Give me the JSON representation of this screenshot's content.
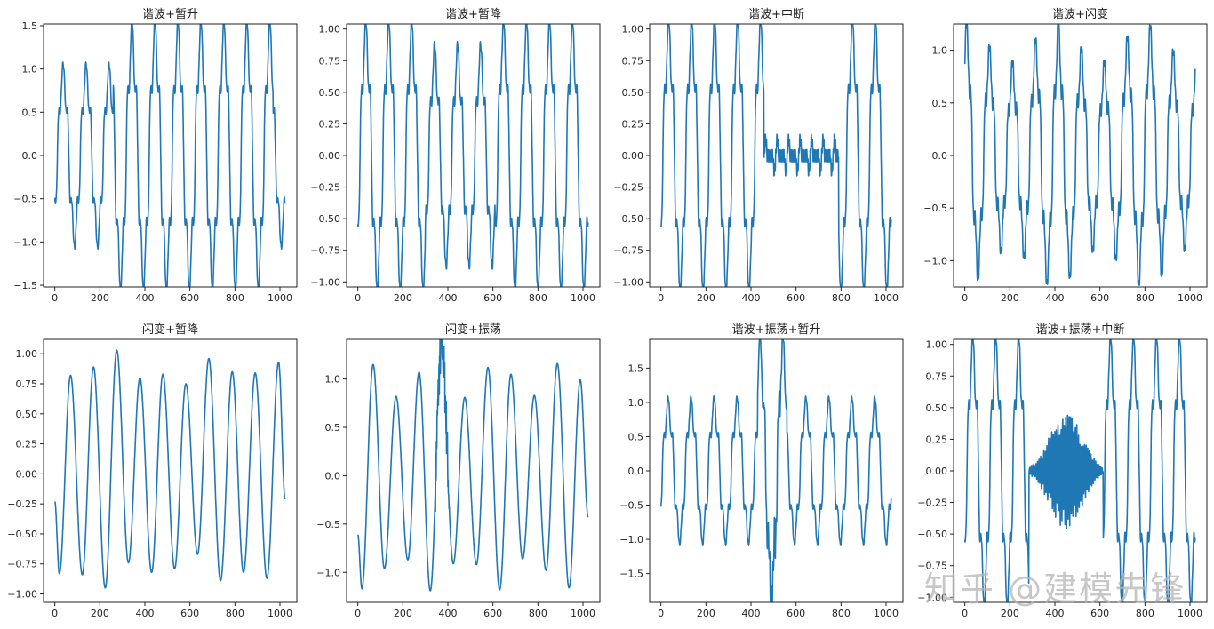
{
  "figure": {
    "watermark": "知乎 @建模先锋",
    "line_color": "#1f77b4"
  },
  "chart_data": [
    {
      "type": "line",
      "title": "谐波+暂升",
      "xlabel": "",
      "ylabel": "",
      "xlim": [
        -50,
        1075
      ],
      "ylim": [
        -1.52,
        1.52
      ],
      "xticks": [
        0,
        200,
        400,
        600,
        800,
        1000
      ],
      "yticks": [
        -1.5,
        -1.0,
        -0.5,
        0.0,
        0.5,
        1.0,
        1.5
      ],
      "ytick_labels": [
        "−1.5",
        "−1.0",
        "−0.5",
        "0.0",
        "0.5",
        "1.0",
        "1.5"
      ],
      "signal": {
        "kind": "harmonic",
        "period": 102,
        "phase": -0.7,
        "amp": 0.94,
        "segments": [
          {
            "from": 0,
            "to": 260,
            "amp": 0.94
          },
          {
            "from": 260,
            "to": 970,
            "amp": 1.38
          },
          {
            "from": 970,
            "to": 1023,
            "amp": 0.94
          }
        ]
      },
      "x_range": [
        0,
        1023
      ]
    },
    {
      "type": "line",
      "title": "谐波+暂降",
      "xlabel": "",
      "ylabel": "",
      "xlim": [
        -50,
        1075
      ],
      "ylim": [
        -1.04,
        1.04
      ],
      "xticks": [
        0,
        200,
        400,
        600,
        800,
        1000
      ],
      "yticks": [
        -1.0,
        -0.75,
        -0.5,
        -0.25,
        0.0,
        0.25,
        0.5,
        0.75,
        1.0
      ],
      "ytick_labels": [
        "−1.00",
        "−0.75",
        "−0.50",
        "−0.25",
        "0.00",
        "0.25",
        "0.50",
        "0.75",
        "1.00"
      ],
      "signal": {
        "kind": "harmonic",
        "period": 102,
        "phase": -0.6,
        "amp": 0.95,
        "segments": [
          {
            "from": 0,
            "to": 300,
            "amp": 0.95
          },
          {
            "from": 300,
            "to": 610,
            "amp": 0.78
          },
          {
            "from": 610,
            "to": 1023,
            "amp": 0.95
          }
        ]
      },
      "x_range": [
        0,
        1023
      ]
    },
    {
      "type": "line",
      "title": "谐波+中断",
      "xlabel": "",
      "ylabel": "",
      "xlim": [
        -50,
        1075
      ],
      "ylim": [
        -1.04,
        1.04
      ],
      "xticks": [
        0,
        200,
        400,
        600,
        800,
        1000
      ],
      "yticks": [
        -1.0,
        -0.75,
        -0.5,
        -0.25,
        0.0,
        0.25,
        0.5,
        0.75,
        1.0
      ],
      "ytick_labels": [
        "−1.00",
        "−0.75",
        "−0.50",
        "−0.25",
        "0.00",
        "0.25",
        "0.50",
        "0.75",
        "1.00"
      ],
      "signal": {
        "kind": "harmonic",
        "period": 102,
        "phase": -0.55,
        "amp": 0.96,
        "segments": [
          {
            "from": 0,
            "to": 458,
            "amp": 0.96
          },
          {
            "from": 458,
            "to": 790,
            "amp": 0.0,
            "residual": 0.25
          },
          {
            "from": 790,
            "to": 1023,
            "amp": 0.96
          }
        ]
      },
      "x_range": [
        0,
        1023
      ]
    },
    {
      "type": "line",
      "title": "谐波+闪变",
      "xlabel": "",
      "ylabel": "",
      "xlim": [
        -50,
        1075
      ],
      "ylim": [
        -1.25,
        1.25
      ],
      "xticks": [
        0,
        200,
        400,
        600,
        800,
        1000
      ],
      "yticks": [
        -1.0,
        -0.5,
        0.0,
        0.5,
        1.0
      ],
      "ytick_labels": [
        "−1.0",
        "−0.5",
        "0.0",
        "0.5",
        "1.0"
      ],
      "signal": {
        "kind": "harmonic-flicker",
        "period": 102,
        "phase": 1.1,
        "amp": 0.95,
        "flicker_depth": 0.17,
        "flicker_period": 400
      },
      "x_range": [
        0,
        1023
      ]
    },
    {
      "type": "line",
      "title": "闪变+暂降",
      "xlabel": "",
      "ylabel": "",
      "xlim": [
        -50,
        1075
      ],
      "ylim": [
        -1.07,
        1.12
      ],
      "xticks": [
        0,
        200,
        400,
        600,
        800,
        1000
      ],
      "yticks": [
        -1.0,
        -0.75,
        -0.5,
        -0.25,
        0.0,
        0.25,
        0.5,
        0.75,
        1.0
      ],
      "ytick_labels": [
        "−1.00",
        "−0.75",
        "−0.50",
        "−0.25",
        "0.00",
        "0.25",
        "0.50",
        "0.75",
        "1.00"
      ],
      "peaks": [
        [
          0,
          -0.23
        ],
        [
          20,
          -0.83
        ],
        [
          70,
          0.82
        ],
        [
          122,
          -0.84
        ],
        [
          172,
          0.89
        ],
        [
          224,
          -0.95
        ],
        [
          275,
          1.03
        ],
        [
          327,
          -0.74
        ],
        [
          378,
          0.8
        ],
        [
          430,
          -0.82
        ],
        [
          480,
          0.83
        ],
        [
          532,
          -0.79
        ],
        [
          582,
          0.75
        ],
        [
          634,
          -0.67
        ],
        [
          684,
          0.96
        ],
        [
          736,
          -0.89
        ],
        [
          788,
          0.85
        ],
        [
          838,
          -0.82
        ],
        [
          890,
          0.84
        ],
        [
          942,
          -0.87
        ],
        [
          994,
          0.93
        ],
        [
          1023,
          -0.21
        ]
      ],
      "x_range": [
        0,
        1023
      ]
    },
    {
      "type": "line",
      "title": "闪变+振荡",
      "xlabel": "",
      "ylabel": "",
      "xlim": [
        -50,
        1075
      ],
      "ylim": [
        -1.31,
        1.41
      ],
      "xticks": [
        0,
        200,
        400,
        600,
        800,
        1000
      ],
      "yticks": [
        -1.0,
        -0.5,
        0.0,
        0.5,
        1.0
      ],
      "ytick_labels": [
        "−1.0",
        "−0.5",
        "0.0",
        "0.5",
        "1.0"
      ],
      "peaks": [
        [
          0,
          -0.61
        ],
        [
          18,
          -1.17
        ],
        [
          68,
          1.15
        ],
        [
          118,
          -0.96
        ],
        [
          170,
          0.82
        ],
        [
          222,
          -0.87
        ],
        [
          272,
          1.07
        ],
        [
          322,
          -1.19
        ],
        [
          372,
          1.33
        ],
        [
          424,
          -0.91
        ],
        [
          475,
          0.81
        ],
        [
          527,
          -0.92
        ],
        [
          578,
          1.12
        ],
        [
          630,
          -1.18
        ],
        [
          680,
          1.05
        ],
        [
          732,
          -0.86
        ],
        [
          784,
          0.83
        ],
        [
          836,
          -0.98
        ],
        [
          886,
          1.16
        ],
        [
          938,
          -1.16
        ],
        [
          988,
          0.99
        ],
        [
          1023,
          -0.43
        ]
      ],
      "oscillation": {
        "from": 345,
        "to": 405,
        "amp": 0.35
      },
      "x_range": [
        0,
        1023
      ]
    },
    {
      "type": "line",
      "title": "谐波+振荡+暂升",
      "xlabel": "",
      "ylabel": "",
      "xlim": [
        -50,
        1075
      ],
      "ylim": [
        -1.92,
        1.92
      ],
      "xticks": [
        0,
        200,
        400,
        600,
        800,
        1000
      ],
      "yticks": [
        -1.5,
        -1.0,
        -0.5,
        0.0,
        0.5,
        1.0,
        1.5
      ],
      "ytick_labels": [
        "−1.5",
        "−1.0",
        "−0.5",
        "0.0",
        "0.5",
        "1.0",
        "1.5"
      ],
      "signal": {
        "kind": "harmonic",
        "period": 102,
        "phase": -0.4,
        "amp": 0.95,
        "segments": [
          {
            "from": 0,
            "to": 430,
            "amp": 0.95
          },
          {
            "from": 430,
            "to": 560,
            "amp": 1.75,
            "oscillation": 0.3
          },
          {
            "from": 560,
            "to": 1023,
            "amp": 0.95
          }
        ]
      },
      "x_range": [
        0,
        1023
      ]
    },
    {
      "type": "line",
      "title": "谐波+振荡+中断",
      "xlabel": "",
      "ylabel": "",
      "xlim": [
        -50,
        1075
      ],
      "ylim": [
        -1.04,
        1.04
      ],
      "xticks": [
        0,
        200,
        400,
        600,
        800,
        1000
      ],
      "yticks": [
        -1.0,
        -0.75,
        -0.5,
        -0.25,
        0.0,
        0.25,
        0.5,
        0.75,
        1.0
      ],
      "ytick_labels": [
        "−1.00",
        "−0.75",
        "−0.50",
        "−0.25",
        "0.00",
        "0.25",
        "0.50",
        "0.75",
        "1.00"
      ],
      "signal": {
        "kind": "harmonic",
        "period": 102,
        "phase": -0.6,
        "amp": 0.95,
        "segments": [
          {
            "from": 0,
            "to": 285,
            "amp": 0.95
          },
          {
            "from": 285,
            "to": 615,
            "amp": 0.0,
            "oscillation": 0.5
          },
          {
            "from": 615,
            "to": 1023,
            "amp": 0.95
          }
        ]
      },
      "x_range": [
        0,
        1023
      ]
    }
  ]
}
